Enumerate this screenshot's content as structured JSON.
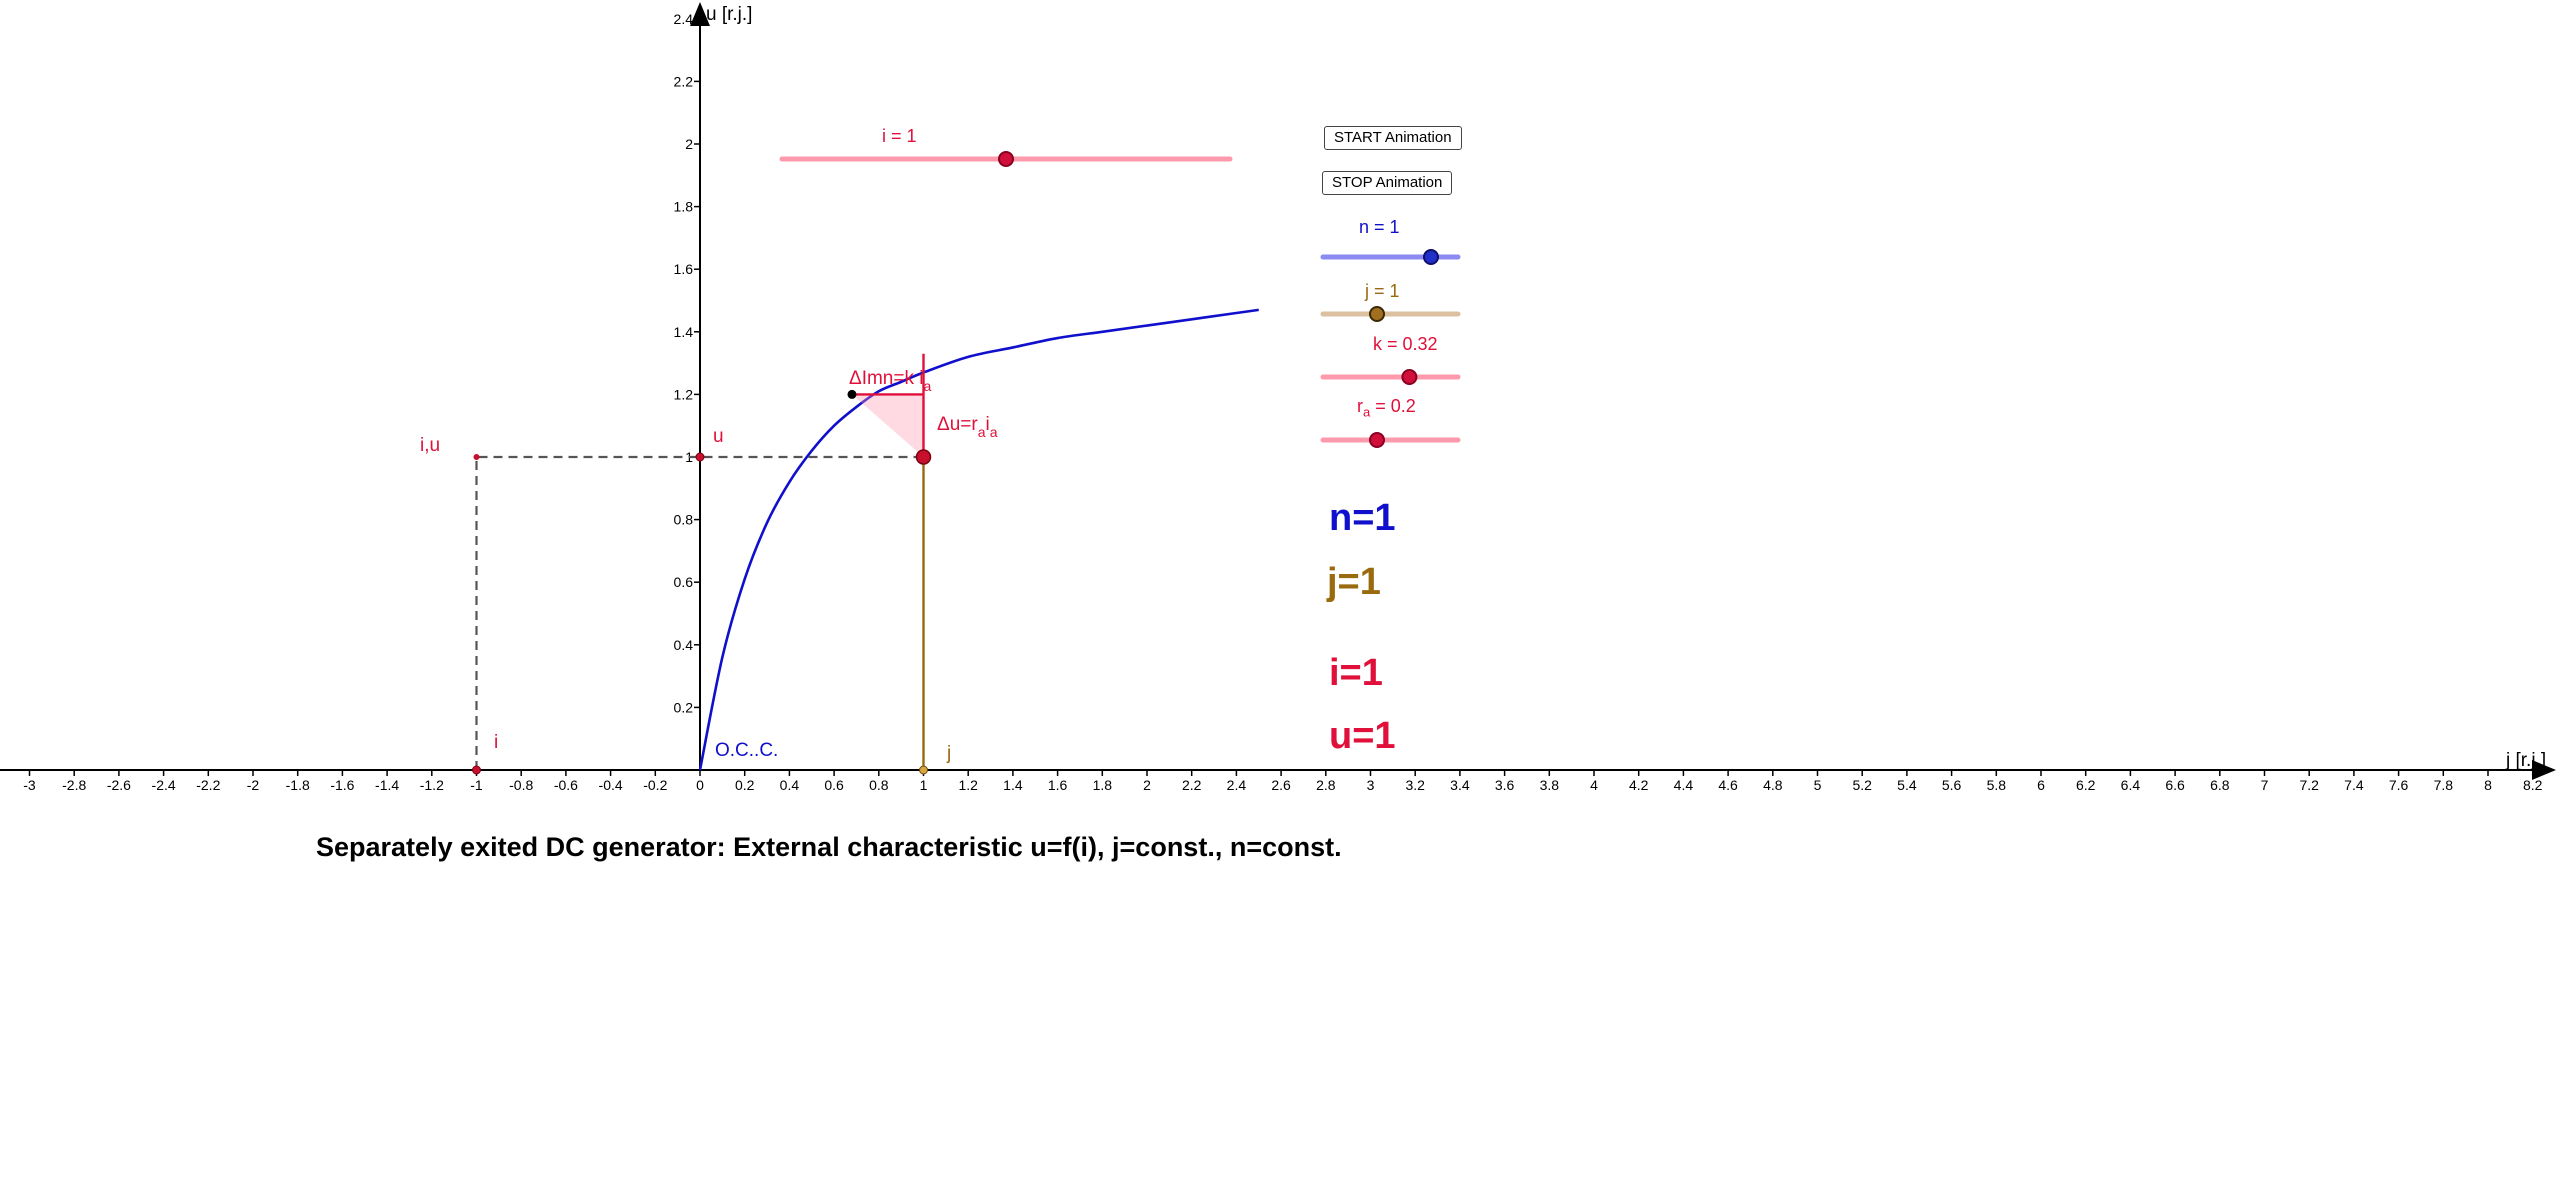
{
  "colors": {
    "blue": "#1010cc",
    "brown": "#9a6a0f",
    "red": "#e0103a",
    "pink": "#ff8fa8",
    "dash": "#555555"
  },
  "chart_data": {
    "type": "line",
    "title": "Separately exited DC generator: External characteristic u=f(i), j=const., n=const.",
    "xlabel": "j [r.j.]",
    "ylabel": "u [r.j.]",
    "xlim": [
      -3.15,
      8.3
    ],
    "ylim": [
      -0.02,
      2.45
    ],
    "grid": false,
    "x_ticks": [
      "-3",
      "-2.8",
      "-2.6",
      "-2.4",
      "-2.2",
      "-2",
      "-1.8",
      "-1.6",
      "-1.4",
      "-1.2",
      "-1",
      "-0.8",
      "-0.6",
      "-0.4",
      "-0.2",
      "0",
      "0.2",
      "0.4",
      "0.6",
      "0.8",
      "1",
      "1.2",
      "1.4",
      "1.6",
      "1.8",
      "2",
      "2.2",
      "2.4",
      "2.6",
      "2.8",
      "3",
      "3.2",
      "3.4",
      "3.6",
      "3.8",
      "4",
      "4.2",
      "4.4",
      "4.6",
      "4.8",
      "5",
      "5.2",
      "5.4",
      "5.6",
      "5.8",
      "6",
      "6.2",
      "6.4",
      "6.6",
      "6.8",
      "7",
      "7.2",
      "7.4",
      "7.6",
      "7.8",
      "8",
      "8.2"
    ],
    "y_ticks": [
      "0.2",
      "0.4",
      "0.6",
      "0.8",
      "1",
      "1.2",
      "1.4",
      "1.6",
      "1.8",
      "2",
      "2.2",
      "2.4"
    ],
    "series": [
      {
        "name": "O.C..C.",
        "x": [
          0,
          0.1,
          0.2,
          0.3,
          0.4,
          0.5,
          0.6,
          0.7,
          0.8,
          0.9,
          1.0,
          1.2,
          1.4,
          1.6,
          1.8,
          2.0,
          2.2,
          2.4,
          2.5
        ],
        "y": [
          0,
          0.36,
          0.61,
          0.79,
          0.92,
          1.02,
          1.1,
          1.16,
          1.21,
          1.24,
          1.27,
          1.32,
          1.35,
          1.38,
          1.4,
          1.42,
          1.44,
          1.46,
          1.47
        ]
      }
    ],
    "points": {
      "operating": {
        "x": 1,
        "y": 1
      },
      "no_load": {
        "x": 0.68,
        "y": 1.2
      },
      "j_point": {
        "x": 1,
        "y": 0
      },
      "i_point": {
        "x": -1,
        "y": 0
      },
      "iu_point": {
        "x": -1,
        "y": 1
      },
      "u_point": {
        "x": 0,
        "y": 1
      }
    },
    "annotations": {
      "occ": "O.C..C.",
      "i_u": "i,u",
      "u": "u",
      "i": "i",
      "j": "j",
      "delta_u_main": "Δu=r",
      "delta_u_sub1": "a",
      "delta_u_mid": "i",
      "delta_u_sub2": "a",
      "armature_main": "ΔImn=k i",
      "armature_sub": "a"
    }
  },
  "controls": {
    "start_button": "START Animation",
    "stop_button": "STOP  Animation",
    "slider_i": {
      "label": "i = 1",
      "value": 1,
      "min": -1,
      "max": 3
    },
    "slider_n": {
      "label": "n = 1",
      "value": 1,
      "min": 0,
      "max": 1.25
    },
    "slider_j": {
      "label": "j = 1",
      "value": 1,
      "min": 0,
      "max": 2.5
    },
    "slider_k": {
      "label": "k = 0.32",
      "value": 0.32,
      "min": 0,
      "max": 0.5
    },
    "slider_ra": {
      "label_main": "r",
      "label_sub": "a",
      "label_rest": " = 0.2",
      "value": 0.2,
      "min": 0,
      "max": 0.5
    }
  },
  "readouts": {
    "n": "n=1",
    "j": "j=1",
    "i": "i=1",
    "u": "u=1"
  },
  "caption": "Separately exited DC generator: External characteristic u=f(i), j=const., n=const."
}
